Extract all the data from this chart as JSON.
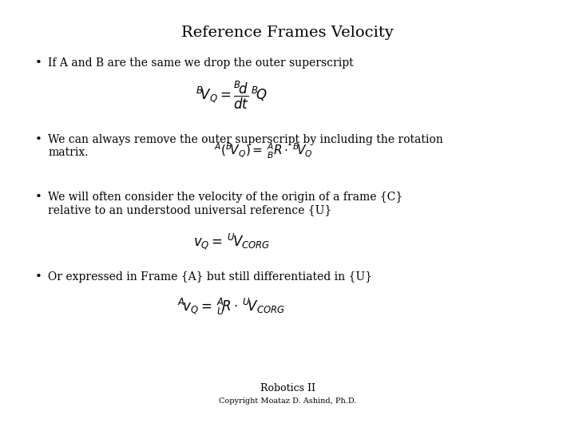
{
  "title": "Reference Frames Velocity",
  "title_fontsize": 14,
  "background_color": "#ffffff",
  "text_color": "#000000",
  "bullet1": "If A and B are the same we drop the outer superscript",
  "eq1": "$^{B}\\!V_{Q} =\\dfrac{^{B}\\!d}{dt}\\,^{B}\\!Q$",
  "bullet2_line1": "We can always remove the outer superscript by including the rotation",
  "bullet2_line2": "matrix.",
  "eq2": "$^{A}(^{B}\\!V_{Q})=\\,^{A}_{B}R\\cdot\\,^{B}\\!V_{Q}$",
  "bullet3_line1": "We will often consider the velocity of the origin of a frame {C}",
  "bullet3_line2": "relative to an understood universal reference {U}",
  "eq3": "$v_{Q}=\\,^{U}\\!V_{CORG}$",
  "bullet4": "Or expressed in Frame {A} but still differentiated in {U}",
  "eq4": "$^{A}\\!v_{Q}=\\,^{A}_{U}\\!R\\cdot\\,^{U}\\!V_{CORG}$",
  "footer1": "Robotics II",
  "footer2": "Copyright Moataz D. Ashind, Ph.D.",
  "footer1_fontsize": 9,
  "footer2_fontsize": 7,
  "bullet_fontsize": 10,
  "eq_fontsize": 12
}
